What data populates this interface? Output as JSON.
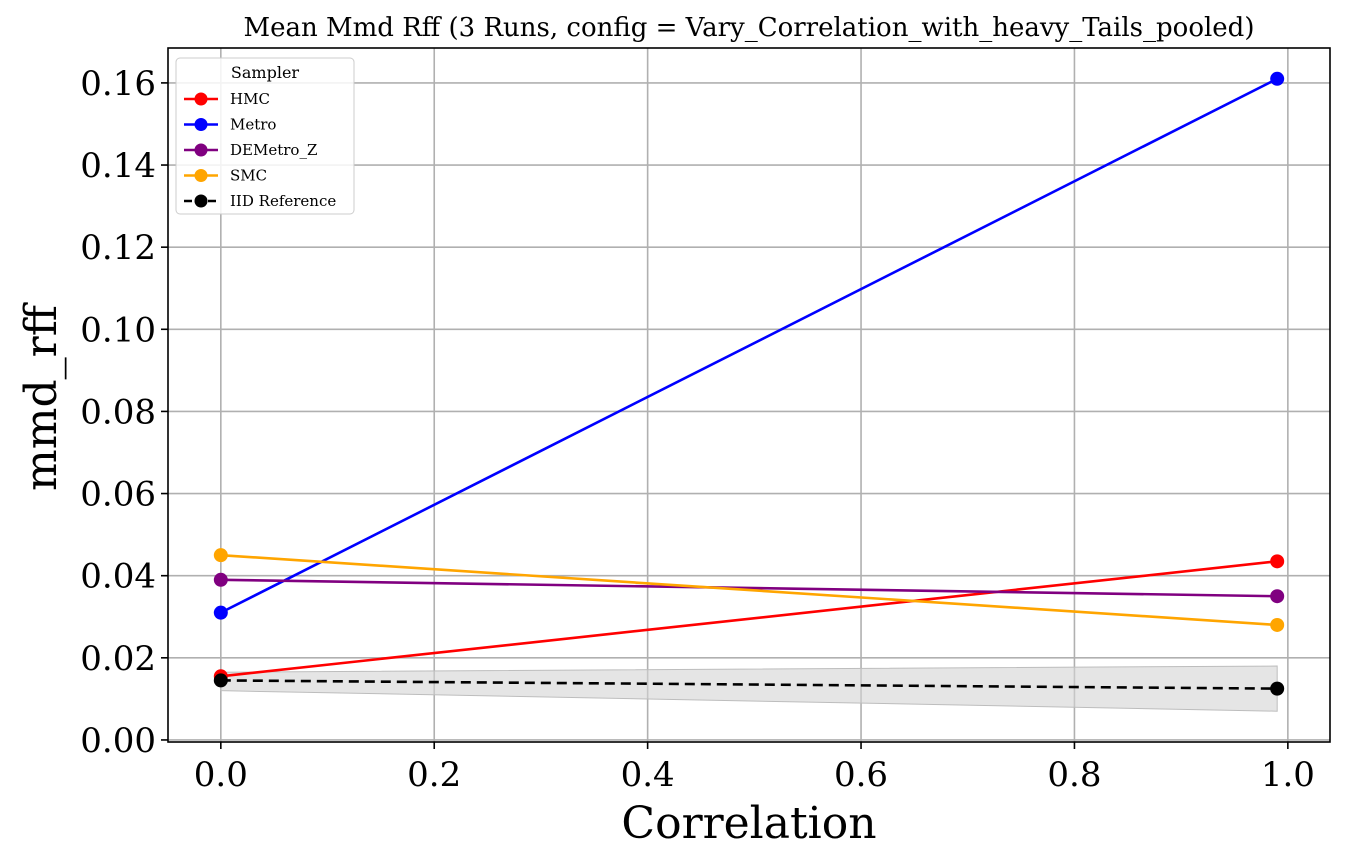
{
  "chart_data": {
    "type": "line",
    "title": "Mean Mmd Rff (3 Runs, config = Vary_Correlation_with_heavy_Tails_pooled)",
    "xlabel": "Correlation",
    "ylabel": "mmd_rff",
    "xlim": [
      -0.0495,
      1.0395
    ],
    "ylim": [
      -0.0005,
      0.1685
    ],
    "xticks": [
      0.0,
      0.2,
      0.4,
      0.6,
      0.8,
      1.0
    ],
    "xtick_labels": [
      "0.0",
      "0.2",
      "0.4",
      "0.6",
      "0.8",
      "1.0"
    ],
    "yticks": [
      0.0,
      0.02,
      0.04,
      0.06,
      0.08,
      0.1,
      0.12,
      0.14,
      0.16
    ],
    "ytick_labels": [
      "0.00",
      "0.02",
      "0.04",
      "0.06",
      "0.08",
      "0.10",
      "0.12",
      "0.14",
      "0.16"
    ],
    "grid": true,
    "legend": {
      "title": "Sampler",
      "placement": "top-left"
    },
    "x": [
      0.0,
      0.99
    ],
    "series": [
      {
        "name": "HMC",
        "color": "#ff0000",
        "dashed": false,
        "values": [
          0.0155,
          0.0435
        ]
      },
      {
        "name": "Metro",
        "color": "#0000ff",
        "dashed": false,
        "values": [
          0.031,
          0.161
        ]
      },
      {
        "name": "DEMetro_Z",
        "color": "#800080",
        "dashed": false,
        "values": [
          0.039,
          0.035
        ]
      },
      {
        "name": "SMC",
        "color": "#ffa500",
        "dashed": false,
        "values": [
          0.045,
          0.028
        ]
      },
      {
        "name": "IID Reference",
        "color": "#000000",
        "dashed": true,
        "values": [
          0.0145,
          0.0125
        ]
      }
    ],
    "band": {
      "color": "#d3d3d3",
      "lower": [
        0.012,
        0.007
      ],
      "upper": [
        0.0165,
        0.018
      ]
    }
  }
}
